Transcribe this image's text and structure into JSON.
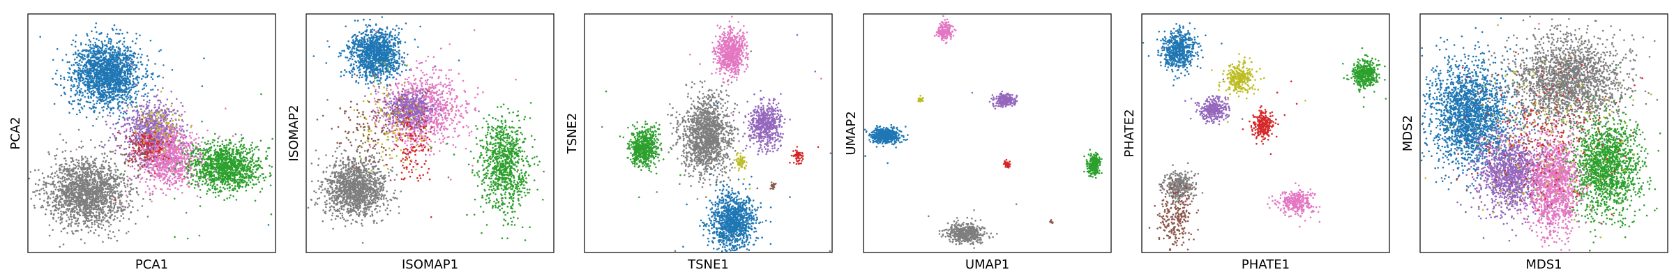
{
  "palette": {
    "blue": "#1f77b4",
    "purple": "#9467bd",
    "pink": "#e377c2",
    "green": "#2ca02c",
    "gray": "#7f7f7f",
    "olive": "#bcbd22",
    "red": "#d62728",
    "brown": "#8c564b"
  },
  "chart_data": [
    {
      "type": "scatter",
      "xlabel": "PCA1",
      "ylabel": "PCA2",
      "xlim": [
        0,
        100
      ],
      "ylim": [
        0,
        100
      ],
      "grid": false,
      "series": [
        {
          "color": "blue",
          "cx": 32,
          "cy": 75,
          "sx": 7,
          "sy": 7,
          "n": 1800
        },
        {
          "color": "purple",
          "cx": 50,
          "cy": 50,
          "sx": 6,
          "sy": 6,
          "n": 900
        },
        {
          "color": "pink",
          "cx": 57,
          "cy": 40,
          "sx": 6,
          "sy": 6,
          "n": 900
        },
        {
          "color": "green",
          "cx": 80,
          "cy": 36,
          "sx": 7,
          "sy": 5,
          "n": 1200
        },
        {
          "color": "gray",
          "cx": 24,
          "cy": 25,
          "sx": 8,
          "sy": 7,
          "n": 1800
        },
        {
          "color": "red",
          "cx": 48,
          "cy": 45,
          "sx": 4,
          "sy": 4,
          "n": 120
        },
        {
          "color": "olive",
          "cx": 52,
          "cy": 52,
          "sx": 5,
          "sy": 5,
          "n": 80
        },
        {
          "color": "brown",
          "cx": 45,
          "cy": 42,
          "sx": 4,
          "sy": 4,
          "n": 60
        }
      ]
    },
    {
      "type": "scatter",
      "xlabel": "ISOMAP1",
      "ylabel": "ISOMAP2",
      "xlim": [
        0,
        100
      ],
      "ylim": [
        0,
        100
      ],
      "grid": false,
      "series": [
        {
          "color": "blue",
          "cx": 28,
          "cy": 83,
          "sx": 5,
          "sy": 5,
          "n": 1200
        },
        {
          "color": "pink",
          "cx": 47,
          "cy": 60,
          "sx": 8,
          "sy": 8,
          "n": 900
        },
        {
          "color": "purple",
          "cx": 42,
          "cy": 60,
          "sx": 5,
          "sy": 4,
          "n": 500
        },
        {
          "color": "green",
          "cx": 80,
          "cy": 37,
          "sx": 5,
          "sy": 10,
          "n": 900
        },
        {
          "color": "gray",
          "cx": 20,
          "cy": 27,
          "sx": 6,
          "sy": 6,
          "n": 1400
        },
        {
          "color": "red",
          "cx": 43,
          "cy": 45,
          "sx": 4,
          "sy": 8,
          "n": 140
        },
        {
          "color": "olive",
          "cx": 35,
          "cy": 55,
          "sx": 8,
          "sy": 10,
          "n": 120
        },
        {
          "color": "brown",
          "cx": 25,
          "cy": 52,
          "sx": 7,
          "sy": 8,
          "n": 120
        }
      ]
    },
    {
      "type": "scatter",
      "xlabel": "TSNE1",
      "ylabel": "TSNE2",
      "xlim": [
        0,
        100
      ],
      "ylim": [
        0,
        100
      ],
      "grid": false,
      "series": [
        {
          "color": "pink",
          "cx": 59,
          "cy": 84,
          "sx": 3,
          "sy": 4.5,
          "n": 700
        },
        {
          "color": "gray",
          "cx": 49,
          "cy": 49,
          "sx": 5,
          "sy": 8,
          "n": 1400
        },
        {
          "color": "purple",
          "cx": 73,
          "cy": 53,
          "sx": 3.2,
          "sy": 4.5,
          "n": 600
        },
        {
          "color": "green",
          "cx": 24,
          "cy": 44,
          "sx": 3,
          "sy": 4,
          "n": 600
        },
        {
          "color": "blue",
          "cx": 60,
          "cy": 13,
          "sx": 4.5,
          "sy": 6,
          "n": 1100
        },
        {
          "color": "olive",
          "cx": 63,
          "cy": 38,
          "sx": 1.3,
          "sy": 1.6,
          "n": 60
        },
        {
          "color": "red",
          "cx": 86,
          "cy": 40,
          "sx": 1.2,
          "sy": 1.5,
          "n": 60
        },
        {
          "color": "brown",
          "cx": 76,
          "cy": 28,
          "sx": 0.7,
          "sy": 0.7,
          "n": 20
        }
      ]
    },
    {
      "type": "scatter",
      "xlabel": "UMAP1",
      "ylabel": "UMAP2",
      "xlim": [
        0,
        100
      ],
      "ylim": [
        0,
        100
      ],
      "grid": false,
      "series": [
        {
          "color": "pink",
          "cx": 33,
          "cy": 93,
          "sx": 1.4,
          "sy": 1.8,
          "n": 200
        },
        {
          "color": "blue",
          "cx": 9,
          "cy": 49,
          "sx": 2.8,
          "sy": 1.5,
          "n": 500
        },
        {
          "color": "purple",
          "cx": 57,
          "cy": 64,
          "sx": 2.2,
          "sy": 1.3,
          "n": 250
        },
        {
          "color": "olive",
          "cx": 23,
          "cy": 64,
          "sx": 0.5,
          "sy": 0.6,
          "n": 30
        },
        {
          "color": "red",
          "cx": 58,
          "cy": 37,
          "sx": 0.6,
          "sy": 0.8,
          "n": 40
        },
        {
          "color": "green",
          "cx": 93,
          "cy": 37,
          "sx": 1.3,
          "sy": 2.2,
          "n": 250
        },
        {
          "color": "gray",
          "cx": 41,
          "cy": 8,
          "sx": 3.5,
          "sy": 2,
          "n": 500
        },
        {
          "color": "brown",
          "cx": 76,
          "cy": 13,
          "sx": 0.4,
          "sy": 0.4,
          "n": 8
        }
      ]
    },
    {
      "type": "scatter",
      "xlabel": "PHATE1",
      "ylabel": "PHATE2",
      "xlim": [
        0,
        100
      ],
      "ylim": [
        0,
        100
      ],
      "grid": false,
      "series": [
        {
          "color": "blue",
          "cx": 15,
          "cy": 85,
          "sx": 3.5,
          "sy": 4,
          "n": 600
        },
        {
          "color": "olive",
          "cx": 39,
          "cy": 73,
          "sx": 3,
          "sy": 3,
          "n": 300
        },
        {
          "color": "purple",
          "cx": 29,
          "cy": 60,
          "sx": 3,
          "sy": 2.5,
          "n": 300
        },
        {
          "color": "red",
          "cx": 49,
          "cy": 53,
          "sx": 2,
          "sy": 3,
          "n": 250
        },
        {
          "color": "green",
          "cx": 90,
          "cy": 75,
          "sx": 2.5,
          "sy": 3,
          "n": 400
        },
        {
          "color": "gray",
          "cx": 15,
          "cy": 28,
          "sx": 3,
          "sy": 3,
          "n": 300
        },
        {
          "color": "brown",
          "cx": 14,
          "cy": 15,
          "sx": 3.5,
          "sy": 7,
          "n": 250
        },
        {
          "color": "pink",
          "cx": 62,
          "cy": 21,
          "sx": 3.5,
          "sy": 2.5,
          "n": 300
        }
      ]
    },
    {
      "type": "scatter",
      "xlabel": "MDS1",
      "ylabel": "MDS2",
      "xlim": [
        0,
        100
      ],
      "ylim": [
        0,
        100
      ],
      "grid": false,
      "series": [
        {
          "color": "blue",
          "cx": 20,
          "cy": 58,
          "sx": 8,
          "sy": 11,
          "n": 2000
        },
        {
          "color": "gray",
          "cx": 60,
          "cy": 72,
          "sx": 11,
          "sy": 9,
          "n": 2000
        },
        {
          "color": "green",
          "cx": 75,
          "cy": 35,
          "sx": 7,
          "sy": 10,
          "n": 1500
        },
        {
          "color": "purple",
          "cx": 37,
          "cy": 33,
          "sx": 7,
          "sy": 8,
          "n": 1300
        },
        {
          "color": "pink",
          "cx": 54,
          "cy": 28,
          "sx": 5,
          "sy": 10,
          "n": 1300
        },
        {
          "color": "red",
          "cx": 50,
          "cy": 50,
          "sx": 14,
          "sy": 14,
          "n": 200
        },
        {
          "color": "olive",
          "cx": 50,
          "cy": 50,
          "sx": 16,
          "sy": 16,
          "n": 150
        },
        {
          "color": "brown",
          "cx": 50,
          "cy": 50,
          "sx": 16,
          "sy": 16,
          "n": 120
        }
      ]
    }
  ]
}
